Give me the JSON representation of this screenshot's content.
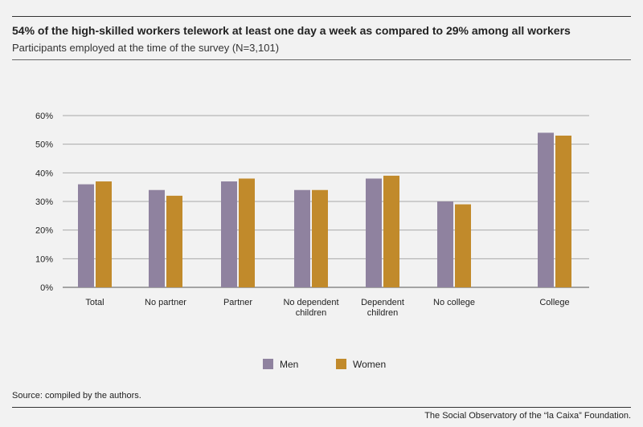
{
  "header": {
    "title": "54% of the high-skilled workers telework at least one day a week as compared to 29% among all workers",
    "subtitle": "Participants employed at the time of the survey (N=3,101)"
  },
  "footer": {
    "source": "Source: compiled by the authors.",
    "credit": "The Social Observatory of the “la Caixa” Foundation."
  },
  "chart_data": {
    "type": "bar",
    "categories": [
      [
        "Total"
      ],
      [
        "No partner"
      ],
      [
        "Partner"
      ],
      [
        "No dependent",
        "children"
      ],
      [
        "Dependent",
        "children"
      ],
      [
        "No college"
      ],
      [
        "College"
      ]
    ],
    "series": [
      {
        "name": "Men",
        "color": "#8f829f",
        "values": [
          36,
          34,
          37,
          34,
          38,
          30,
          54
        ]
      },
      {
        "name": "Women",
        "color": "#c18a2b",
        "values": [
          37,
          32,
          38,
          34,
          39,
          29,
          53
        ]
      }
    ],
    "yticks": [
      "0%",
      "10%",
      "20%",
      "30%",
      "40%",
      "50%",
      "60%"
    ],
    "ylim": [
      0,
      60
    ],
    "grid": true,
    "legend": "bottom-center",
    "xlabel": "",
    "ylabel": ""
  }
}
